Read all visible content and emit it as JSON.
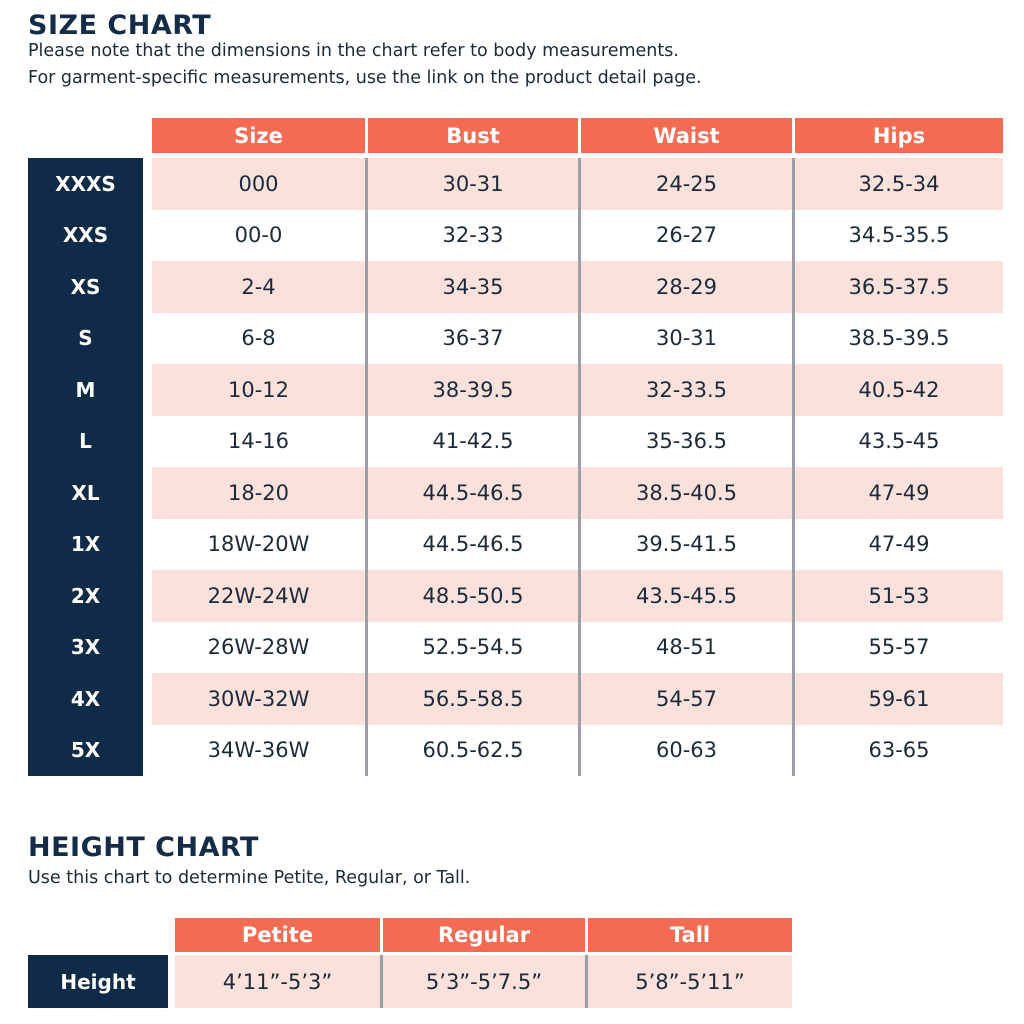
{
  "size_chart": {
    "title": "SIZE CHART",
    "subtitle_lines": [
      "Please note that the dimensions in the chart refer to body measurements.",
      "For garment-specific measurements, use the link on the product detail page."
    ],
    "columns": [
      "Size",
      "Bust",
      "Waist",
      "Hips"
    ],
    "rows": [
      {
        "label": "XXXS",
        "cells": [
          "000",
          "30-31",
          "24-25",
          "32.5-34"
        ]
      },
      {
        "label": "XXS",
        "cells": [
          "00-0",
          "32-33",
          "26-27",
          "34.5-35.5"
        ]
      },
      {
        "label": "XS",
        "cells": [
          "2-4",
          "34-35",
          "28-29",
          "36.5-37.5"
        ]
      },
      {
        "label": "S",
        "cells": [
          "6-8",
          "36-37",
          "30-31",
          "38.5-39.5"
        ]
      },
      {
        "label": "M",
        "cells": [
          "10-12",
          "38-39.5",
          "32-33.5",
          "40.5-42"
        ]
      },
      {
        "label": "L",
        "cells": [
          "14-16",
          "41-42.5",
          "35-36.5",
          "43.5-45"
        ]
      },
      {
        "label": "XL",
        "cells": [
          "18-20",
          "44.5-46.5",
          "38.5-40.5",
          "47-49"
        ]
      },
      {
        "label": "1X",
        "cells": [
          "18W-20W",
          "44.5-46.5",
          "39.5-41.5",
          "47-49"
        ]
      },
      {
        "label": "2X",
        "cells": [
          "22W-24W",
          "48.5-50.5",
          "43.5-45.5",
          "51-53"
        ]
      },
      {
        "label": "3X",
        "cells": [
          "26W-28W",
          "52.5-54.5",
          "48-51",
          "55-57"
        ]
      },
      {
        "label": "4X",
        "cells": [
          "30W-32W",
          "56.5-58.5",
          "54-57",
          "59-61"
        ]
      },
      {
        "label": "5X",
        "cells": [
          "34W-36W",
          "60.5-62.5",
          "60-63",
          "63-65"
        ]
      }
    ]
  },
  "height_chart": {
    "title": "HEIGHT CHART",
    "subtitle": "Use this chart to determine Petite, Regular, or Tall.",
    "columns": [
      "Petite",
      "Regular",
      "Tall"
    ],
    "row": {
      "label": "Height",
      "cells": [
        "4’11”-5’3”",
        "5’3”-5’7.5”",
        "5’8”-5’11”"
      ]
    }
  },
  "colors": {
    "header": "#f26b52",
    "label": "#102b47",
    "stripe": "#fbe1db"
  }
}
